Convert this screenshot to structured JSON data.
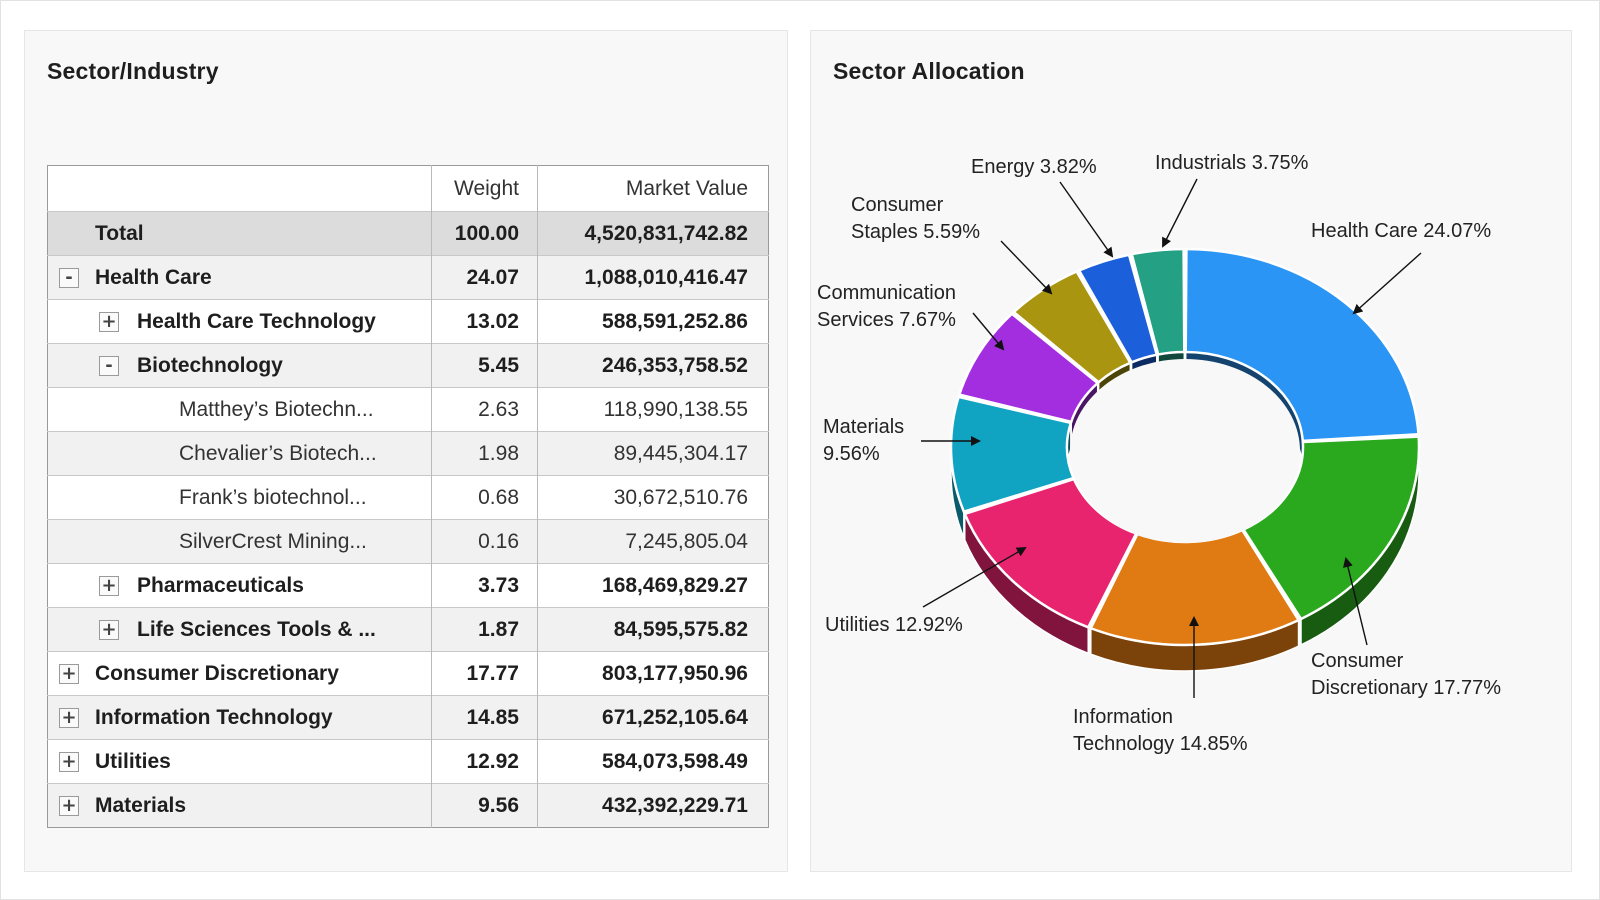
{
  "table_panel": {
    "title": "Sector/Industry",
    "columns": {
      "name": "",
      "weight": "Weight",
      "market_value": "Market Value"
    },
    "rows": [
      {
        "name": "Total",
        "weight": "100.00",
        "market_value": "4,520,831,742.82",
        "level": "total",
        "toggle": ""
      },
      {
        "name": "Health Care",
        "weight": "24.07",
        "market_value": "1,088,010,416.47",
        "level": 0,
        "toggle": "-"
      },
      {
        "name": "Health Care Technology",
        "weight": "13.02",
        "market_value": "588,591,252.86",
        "level": 1,
        "toggle": "+"
      },
      {
        "name": "Biotechnology",
        "weight": "5.45",
        "market_value": "246,353,758.52",
        "level": 1,
        "toggle": "-"
      },
      {
        "name": "Matthey’s Biotechn...",
        "weight": "2.63",
        "market_value": "118,990,138.55",
        "level": 2,
        "toggle": ""
      },
      {
        "name": "Chevalier’s Biotech...",
        "weight": "1.98",
        "market_value": "89,445,304.17",
        "level": 2,
        "toggle": ""
      },
      {
        "name": "Frank’s biotechnol...",
        "weight": "0.68",
        "market_value": "30,672,510.76",
        "level": 2,
        "toggle": ""
      },
      {
        "name": "SilverCrest Mining...",
        "weight": "0.16",
        "market_value": "7,245,805.04",
        "level": 2,
        "toggle": ""
      },
      {
        "name": "Pharmaceuticals",
        "weight": "3.73",
        "market_value": "168,469,829.27",
        "level": 1,
        "toggle": "+"
      },
      {
        "name": "Life Sciences Tools & ...",
        "weight": "1.87",
        "market_value": "84,595,575.82",
        "level": 1,
        "toggle": "+"
      },
      {
        "name": "Consumer Discretionary",
        "weight": "17.77",
        "market_value": "803,177,950.96",
        "level": 0,
        "toggle": "+"
      },
      {
        "name": "Information Technology",
        "weight": "14.85",
        "market_value": "671,252,105.64",
        "level": 0,
        "toggle": "+"
      },
      {
        "name": "Utilities",
        "weight": "12.92",
        "market_value": "584,073,598.49",
        "level": 0,
        "toggle": "+"
      },
      {
        "name": "Materials",
        "weight": "9.56",
        "market_value": "432,392,229.71",
        "level": 0,
        "toggle": "+"
      }
    ]
  },
  "chart_panel": {
    "title": "Sector Allocation"
  },
  "chart_data": {
    "type": "pie",
    "title": "Sector Allocation",
    "donut": true,
    "three_d": true,
    "legend": "none",
    "slices": [
      {
        "label": "Health Care",
        "value": 24.07,
        "label_lines": [
          "Health Care 24.07%"
        ],
        "color": "#2a95f5"
      },
      {
        "label": "Consumer Discretionary",
        "value": 17.77,
        "label_lines": [
          "Consumer",
          "Discretionary 17.77%"
        ],
        "color": "#2aa81e"
      },
      {
        "label": "Information Technology",
        "value": 14.85,
        "label_lines": [
          "Information",
          "Technology 14.85%"
        ],
        "color": "#e07a12"
      },
      {
        "label": "Utilities",
        "value": 12.92,
        "label_lines": [
          "Utilities 12.92%"
        ],
        "color": "#e8246e"
      },
      {
        "label": "Materials",
        "value": 9.56,
        "label_lines": [
          "Materials",
          "9.56%"
        ],
        "color": "#10a3c2"
      },
      {
        "label": "Communication Services",
        "value": 7.67,
        "label_lines": [
          "Communication",
          "Services 7.67%"
        ],
        "color": "#a32ee0"
      },
      {
        "label": "Consumer Staples",
        "value": 5.59,
        "label_lines": [
          "Consumer",
          "Staples 5.59%"
        ],
        "color": "#a99510"
      },
      {
        "label": "Energy",
        "value": 3.82,
        "label_lines": [
          "Energy 3.82%"
        ],
        "color": "#1b5fdb"
      },
      {
        "label": "Industrials",
        "value": 3.75,
        "label_lines": [
          "Industrials 3.75%"
        ],
        "color": "#24a085"
      }
    ]
  }
}
